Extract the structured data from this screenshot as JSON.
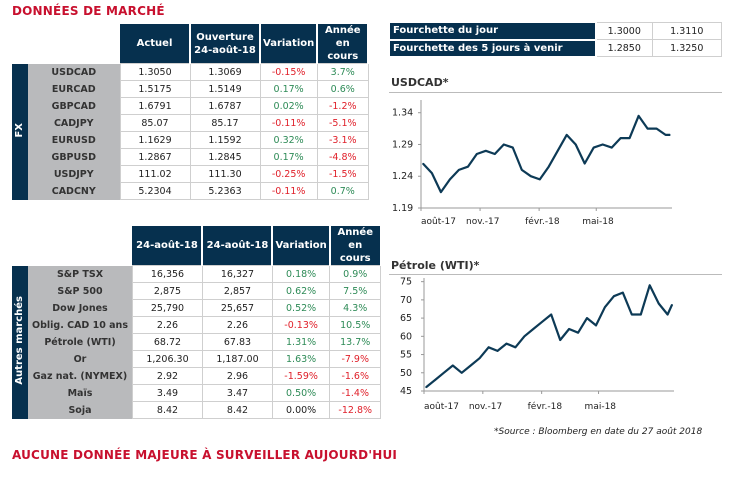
{
  "title": "DONNÉES DE MARCHÉ",
  "fx": {
    "side_label": "FX",
    "headers": [
      "Actuel",
      "Ouverture 24-août-18",
      "Variation",
      "Année en cours"
    ],
    "rows": [
      {
        "name": "USDCAD",
        "actuel": "1.3050",
        "ouverture": "1.3069",
        "variation": "-0.15%",
        "annee": "3.7%"
      },
      {
        "name": "EURCAD",
        "actuel": "1.5175",
        "ouverture": "1.5149",
        "variation": "0.17%",
        "annee": "0.6%"
      },
      {
        "name": "GBPCAD",
        "actuel": "1.6791",
        "ouverture": "1.6787",
        "variation": "0.02%",
        "annee": "-1.2%"
      },
      {
        "name": "CADJPY",
        "actuel": "85.07",
        "ouverture": "85.17",
        "variation": "-0.11%",
        "annee": "-5.1%"
      },
      {
        "name": "EURUSD",
        "actuel": "1.1629",
        "ouverture": "1.1592",
        "variation": "0.32%",
        "annee": "-3.1%"
      },
      {
        "name": "GBPUSD",
        "actuel": "1.2867",
        "ouverture": "1.2845",
        "variation": "0.17%",
        "annee": "-4.8%"
      },
      {
        "name": "USDJPY",
        "actuel": "111.02",
        "ouverture": "111.30",
        "variation": "-0.25%",
        "annee": "-1.5%"
      },
      {
        "name": "CADCNY",
        "actuel": "5.2304",
        "ouverture": "5.2363",
        "variation": "-0.11%",
        "annee": "0.7%"
      }
    ]
  },
  "markets": {
    "side_label": "Autres marchés",
    "headers": [
      "24-août-18",
      "24-août-18",
      "Variation",
      "Année en cours"
    ],
    "rows": [
      {
        "name": "S&P TSX",
        "actuel": "16,356",
        "ouverture": "16,327",
        "variation": "0.18%",
        "annee": "0.9%"
      },
      {
        "name": "S&P 500",
        "actuel": "2,875",
        "ouverture": "2,857",
        "variation": "0.62%",
        "annee": "7.5%"
      },
      {
        "name": "Dow Jones",
        "actuel": "25,790",
        "ouverture": "25,657",
        "variation": "0.52%",
        "annee": "4.3%"
      },
      {
        "name": "Oblig. CAD 10 ans",
        "actuel": "2.26",
        "ouverture": "2.26",
        "variation": "-0.13%",
        "annee": "10.5%"
      },
      {
        "name": "Pétrole (WTI)",
        "actuel": "68.72",
        "ouverture": "67.83",
        "variation": "1.31%",
        "annee": "13.7%"
      },
      {
        "name": "Or",
        "actuel": "1,206.30",
        "ouverture": "1,187.00",
        "variation": "1.63%",
        "annee": "-7.9%"
      },
      {
        "name": "Gaz nat. (NYMEX)",
        "actuel": "2.92",
        "ouverture": "2.96",
        "variation": "-1.59%",
        "annee": "-1.6%"
      },
      {
        "name": "Maïs",
        "actuel": "3.49",
        "ouverture": "3.47",
        "variation": "0.50%",
        "annee": "-1.4%"
      },
      {
        "name": "Soja",
        "actuel": "8.42",
        "ouverture": "8.42",
        "variation": "0.00%",
        "annee": "-12.8%"
      }
    ]
  },
  "ranges": [
    {
      "label": "Fourchette du jour",
      "low": "1.3000",
      "high": "1.3110"
    },
    {
      "label": "Fourchette des 5 jours à venir",
      "low": "1.2850",
      "high": "1.3250"
    }
  ],
  "colors": {
    "header": "#06304e",
    "title": "#c8102e",
    "positive": "#2e8b57",
    "negative": "#e0202a",
    "line": "#0d3a56"
  },
  "chart_data": [
    {
      "type": "line",
      "title": "USDCAD*",
      "ylim": [
        1.19,
        1.36
      ],
      "yticks": [
        "1.34",
        "1.29",
        "1.24",
        "1.19"
      ],
      "ytick_values": [
        1.34,
        1.29,
        1.24,
        1.19
      ],
      "xlim": [
        "2017-08-01",
        "2018-08-27"
      ],
      "xticks": [
        "août-17",
        "nov.-17",
        "févr.-18",
        "mai-18"
      ],
      "xtick_dates": [
        "2017-08-01",
        "2017-11-01",
        "2018-02-01",
        "2018-05-01"
      ],
      "x": [
        "2017-08-04",
        "2017-08-18",
        "2017-09-01",
        "2017-09-15",
        "2017-09-29",
        "2017-10-13",
        "2017-10-27",
        "2017-11-10",
        "2017-11-24",
        "2017-12-08",
        "2017-12-22",
        "2018-01-05",
        "2018-01-19",
        "2018-02-02",
        "2018-02-16",
        "2018-03-02",
        "2018-03-16",
        "2018-03-30",
        "2018-04-13",
        "2018-04-27",
        "2018-05-11",
        "2018-05-25",
        "2018-06-08",
        "2018-06-22",
        "2018-07-06",
        "2018-07-20",
        "2018-08-03",
        "2018-08-17",
        "2018-08-24"
      ],
      "values": [
        1.26,
        1.245,
        1.215,
        1.235,
        1.25,
        1.255,
        1.275,
        1.28,
        1.275,
        1.29,
        1.285,
        1.25,
        1.24,
        1.235,
        1.255,
        1.28,
        1.305,
        1.29,
        1.26,
        1.285,
        1.29,
        1.285,
        1.3,
        1.3,
        1.335,
        1.315,
        1.315,
        1.305,
        1.305
      ]
    },
    {
      "type": "line",
      "title": "Pétrole (WTI)*",
      "ylim": [
        45,
        76
      ],
      "yticks": [
        "75",
        "70",
        "65",
        "60",
        "55",
        "50",
        "45"
      ],
      "ytick_values": [
        75,
        70,
        65,
        60,
        55,
        50,
        45
      ],
      "xlim": [
        "2017-08-01",
        "2018-08-27"
      ],
      "xticks": [
        "août-17",
        "nov.-17",
        "févr.-18",
        "mai-18"
      ],
      "xtick_dates": [
        "2017-08-01",
        "2017-11-01",
        "2018-02-01",
        "2018-05-01"
      ],
      "x": [
        "2017-08-04",
        "2017-08-18",
        "2017-09-01",
        "2017-09-15",
        "2017-09-29",
        "2017-10-13",
        "2017-10-27",
        "2017-11-10",
        "2017-11-24",
        "2017-12-08",
        "2017-12-22",
        "2018-01-05",
        "2018-01-19",
        "2018-02-02",
        "2018-02-16",
        "2018-03-02",
        "2018-03-16",
        "2018-03-30",
        "2018-04-13",
        "2018-04-27",
        "2018-05-11",
        "2018-05-25",
        "2018-06-08",
        "2018-06-22",
        "2018-07-06",
        "2018-07-20",
        "2018-08-03",
        "2018-08-17",
        "2018-08-24"
      ],
      "values": [
        46,
        48,
        50,
        52,
        50,
        52,
        54,
        57,
        56,
        58,
        57,
        60,
        62,
        64,
        66,
        59,
        62,
        61,
        65,
        63,
        68,
        71,
        72,
        66,
        66,
        74,
        69,
        66,
        68.7
      ]
    }
  ],
  "source": "*Source : Bloomberg en date du  27 août 2018",
  "footer_title": "AUCUNE DONNÉE MAJEURE À SURVEILLER AUJOURD'HUI"
}
